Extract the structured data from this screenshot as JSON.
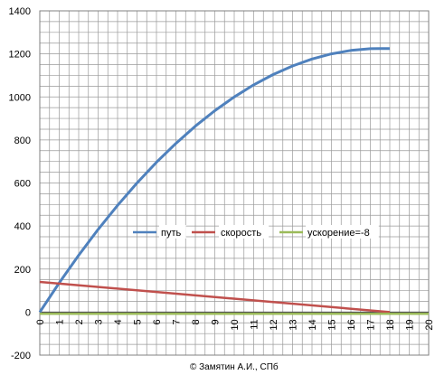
{
  "chart_data": {
    "type": "line",
    "title": "",
    "xlabel": "",
    "ylabel": "",
    "xlim": [
      0,
      20
    ],
    "ylim": [
      -200,
      1400
    ],
    "x_ticks": [
      "0",
      "1",
      "2",
      "3",
      "4",
      "5",
      "6",
      "7",
      "8",
      "9",
      "10",
      "11",
      "12",
      "13",
      "14",
      "15",
      "16",
      "17",
      "18",
      "19",
      "20"
    ],
    "y_ticks": [
      "-200",
      "0",
      "200",
      "400",
      "600",
      "800",
      "1000",
      "1200",
      "1400"
    ],
    "grid": true,
    "legend_position": "center",
    "series": [
      {
        "name": "путь",
        "color": "#4F81BD",
        "x": [
          0,
          1,
          2,
          3,
          4,
          5,
          6,
          7,
          8,
          9,
          10,
          11,
          12,
          13,
          14,
          15,
          16,
          17,
          17.5,
          18
        ],
        "y": [
          0,
          136,
          264,
          384,
          496,
          600,
          696,
          784,
          864,
          936,
          1000,
          1056,
          1104,
          1144,
          1176,
          1200,
          1216,
          1224,
          1225,
          1225
        ]
      },
      {
        "name": "скорость",
        "color": "#C0504D",
        "x": [
          0,
          18
        ],
        "y": [
          140,
          0
        ]
      },
      {
        "name": "ускорение=-8",
        "color": "#9BBB59",
        "x": [
          0,
          20
        ],
        "y": [
          -8,
          -8
        ]
      }
    ]
  },
  "credit": "© Замятин А.И., СПб"
}
